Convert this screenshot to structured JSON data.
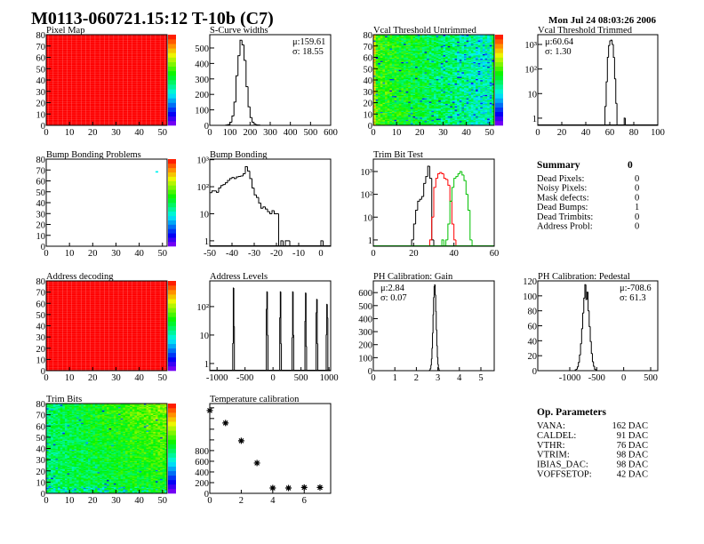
{
  "title": "M0113-060721.15:12 T-10b (C7)",
  "timestamp": "Mon Jul 24 08:03:26 2006",
  "chart_data": [
    {
      "type": "heatmap",
      "title": "Pixel Map",
      "xlim": [
        0,
        52
      ],
      "ylim": [
        0,
        80
      ],
      "xticks": [
        "0",
        "10",
        "20",
        "30",
        "40",
        "50"
      ],
      "yticks": [
        "0",
        "10",
        "20",
        "30",
        "40",
        "50",
        "60",
        "70",
        "80"
      ],
      "zlim": [
        0,
        1
      ],
      "uniform_value": 1
    },
    {
      "type": "bar",
      "subtype": "histogram",
      "title": "S-Curve widths",
      "xlim": [
        0,
        600
      ],
      "ylim": [
        0,
        586
      ],
      "ylog": false,
      "xticks": [
        "0",
        "100",
        "200",
        "300",
        "400",
        "500",
        "600"
      ],
      "yticks": [
        "0",
        "100",
        "200",
        "300",
        "400",
        "500"
      ],
      "stats": {
        "mean": "μ:159.61",
        "sigma": "σ: 18.55",
        "position": "top-right"
      },
      "series": [
        {
          "color": "#000000",
          "bin_width": 10,
          "x": [
            80,
            90,
            100,
            110,
            120,
            130,
            140,
            150,
            160,
            170,
            180,
            190,
            200,
            210,
            220,
            230,
            240
          ],
          "y": [
            2,
            5,
            20,
            60,
            150,
            320,
            450,
            550,
            520,
            420,
            250,
            120,
            50,
            20,
            8,
            3,
            2
          ]
        }
      ]
    },
    {
      "type": "heatmap",
      "title": "Vcal Threshold Untrimmed",
      "xlim": [
        0,
        52
      ],
      "ylim": [
        0,
        80
      ],
      "xticks": [
        "0",
        "10",
        "20",
        "30",
        "40",
        "50"
      ],
      "yticks": [
        "0",
        "10",
        "20",
        "30",
        "40",
        "50",
        "60",
        "70",
        "80"
      ],
      "zlim": [
        85,
        125
      ]
    },
    {
      "type": "bar",
      "subtype": "histogram",
      "title": "Vcal Threshold Trimmed",
      "xlim": [
        0,
        100
      ],
      "ylim": [
        0.51,
        2500
      ],
      "ylog": true,
      "xticks": [
        "0",
        "20",
        "40",
        "60",
        "80",
        "100"
      ],
      "yticks": [
        "1",
        "10",
        "10²",
        "10³"
      ],
      "stats": {
        "mean": "μ:60.64",
        "sigma": "σ: 1.30",
        "position": "top-left"
      },
      "series": [
        {
          "color": "#000000",
          "bin_width": 1,
          "x": [
            56,
            57,
            58,
            59,
            60,
            61,
            62,
            63,
            64,
            65,
            72
          ],
          "y": [
            3,
            30,
            300,
            900,
            1400,
            1500,
            1000,
            300,
            40,
            4,
            1
          ]
        }
      ]
    },
    {
      "type": "heatmap",
      "title": "Bump Bonding Problems",
      "xlim": [
        0,
        52
      ],
      "ylim": [
        0,
        80
      ],
      "xticks": [
        "0",
        "10",
        "20",
        "30",
        "40",
        "50"
      ],
      "yticks": [
        "0",
        "10",
        "20",
        "30",
        "40",
        "50",
        "60",
        "70",
        "80"
      ],
      "zlim": [
        0,
        1
      ],
      "cells": [
        {
          "x": 47,
          "y": 68,
          "z": 0.35
        }
      ]
    },
    {
      "type": "bar",
      "subtype": "histogram",
      "title": "Bump Bonding",
      "xlim": [
        -50,
        4.4
      ],
      "ylim": [
        0.63,
        1050
      ],
      "ylog": true,
      "xticks": [
        "-50",
        "-40",
        "-30",
        "-20",
        "-10",
        "0"
      ],
      "yticks": [
        "1",
        "10",
        "10²",
        "10³"
      ],
      "series": [
        {
          "color": "#000000",
          "bin_width": 1,
          "x": [
            -50,
            -49,
            -48,
            -47,
            -46,
            -45,
            -44,
            -43,
            -42,
            -41,
            -40,
            -39,
            -38,
            -37,
            -36,
            -35,
            -34,
            -33,
            -32,
            -31,
            -30,
            -29,
            -28,
            -27,
            -26,
            -25,
            -24,
            -23,
            -22,
            -21,
            -20,
            -18,
            -16,
            -15,
            0
          ],
          "y": [
            60,
            70,
            70,
            62,
            90,
            110,
            120,
            140,
            170,
            200,
            220,
            200,
            230,
            240,
            250,
            300,
            550,
            380,
            200,
            90,
            50,
            40,
            25,
            16,
            18,
            15,
            12,
            10,
            13,
            10,
            10,
            1,
            1,
            1,
            1
          ]
        }
      ]
    },
    {
      "type": "bar",
      "subtype": "histogram",
      "title": "Trim Bit Test",
      "xlim": [
        0,
        60
      ],
      "ylim": [
        0.53,
        3500
      ],
      "ylog": true,
      "xticks": [
        "0",
        "20",
        "40",
        "60"
      ],
      "yticks": [
        "1",
        "10",
        "10²",
        "10³"
      ],
      "series": [
        {
          "color": "#000000",
          "bin_width": 1,
          "x": [
            19,
            20,
            21,
            22,
            23,
            24,
            25,
            26,
            27,
            28,
            29
          ],
          "y": [
            1,
            5,
            20,
            50,
            60,
            80,
            300,
            600,
            1700,
            500,
            1
          ]
        },
        {
          "color": "#ff0000",
          "bin_width": 1,
          "x": [
            28,
            29,
            30,
            31,
            32,
            33,
            34,
            35,
            36,
            37,
            38,
            39,
            40
          ],
          "y": [
            1,
            10,
            200,
            500,
            800,
            900,
            800,
            500,
            450,
            250,
            50,
            5,
            1
          ]
        },
        {
          "color": "#00c000",
          "bin_width": 1,
          "x": [
            34,
            36,
            37,
            38,
            39,
            40,
            41,
            42,
            43,
            44,
            45,
            46,
            47,
            48
          ],
          "y": [
            1,
            1,
            5,
            50,
            200,
            500,
            600,
            800,
            1000,
            700,
            400,
            100,
            20,
            1
          ]
        }
      ]
    },
    {
      "type": "heatmap",
      "title": "Address decoding",
      "xlim": [
        0,
        52
      ],
      "ylim": [
        0,
        80
      ],
      "xticks": [
        "0",
        "10",
        "20",
        "30",
        "40",
        "50"
      ],
      "yticks": [
        "0",
        "10",
        "20",
        "30",
        "40",
        "50",
        "60",
        "70",
        "80"
      ],
      "zlim": [
        0,
        1
      ],
      "uniform_value": 1
    },
    {
      "type": "bar",
      "subtype": "histogram",
      "title": "Address Levels",
      "xlim": [
        -1130,
        1030
      ],
      "ylim": [
        0.56,
        800
      ],
      "ylog": true,
      "xticks": [
        "-1000",
        "-500",
        "0",
        "500",
        "1000"
      ],
      "xtick_values": [
        -1000,
        -500,
        0,
        500,
        1000
      ],
      "yticks": [
        "1",
        "10",
        "10²"
      ],
      "series": [
        {
          "color": "#000000",
          "bin_width": 10,
          "x": [
            -720,
            -710,
            -700,
            -120,
            -110,
            -100,
            120,
            130,
            140,
            340,
            350,
            360,
            570,
            580,
            590,
            770,
            780,
            790,
            950,
            960,
            970
          ],
          "y": [
            5,
            450,
            20,
            80,
            330,
            10,
            40,
            330,
            5,
            8,
            330,
            10,
            30,
            300,
            4,
            60,
            180,
            5,
            10,
            120,
            40
          ]
        }
      ]
    },
    {
      "type": "bar",
      "subtype": "histogram",
      "title": "PH Calibration: Gain",
      "xlim": [
        0,
        5.62
      ],
      "ylim": [
        0,
        690
      ],
      "ylog": false,
      "xticks": [
        "0",
        "1",
        "2",
        "3",
        "4",
        "5"
      ],
      "yticks": [
        "0",
        "100",
        "200",
        "300",
        "400",
        "500",
        "600"
      ],
      "stats": {
        "mean": "μ:2.84",
        "sigma": "σ: 0.07",
        "position": "top-left"
      },
      "series": [
        {
          "color": "#000000",
          "bin_width": 0.025,
          "x": [
            2.6,
            2.625,
            2.65,
            2.675,
            2.7,
            2.725,
            2.75,
            2.775,
            2.8,
            2.825,
            2.85,
            2.875,
            2.9,
            2.925,
            2.95,
            2.975,
            3.0,
            3.025,
            3.05
          ],
          "y": [
            2,
            6,
            17,
            41,
            89,
            171,
            288,
            429,
            561,
            645,
            660,
            582,
            457,
            315,
            193,
            103,
            49,
            20,
            7
          ]
        }
      ]
    },
    {
      "type": "bar",
      "subtype": "histogram",
      "title": "PH Calibration: Pedestal",
      "xlim": [
        -1593,
        632
      ],
      "ylim": [
        0,
        120
      ],
      "ylog": false,
      "xticks": [
        "-1000",
        "-500",
        "0",
        "500"
      ],
      "xtick_values": [
        -1000,
        -500,
        0,
        500
      ],
      "yticks": [
        "0",
        "20",
        "40",
        "60",
        "80",
        "100",
        "120"
      ],
      "stats": {
        "mean": "μ:-708.6",
        "sigma": "σ: 61.3",
        "position": "top-right"
      },
      "series": [
        {
          "color": "#000000",
          "bin_width": 20,
          "x": [
            -900,
            -880,
            -860,
            -840,
            -820,
            -800,
            -780,
            -760,
            -740,
            -720,
            -700,
            -680,
            -660,
            -640,
            -620,
            -600,
            -580,
            -560,
            -540,
            -520
          ],
          "y": [
            1,
            2,
            5,
            11,
            21,
            36,
            56,
            77,
            97,
            115,
            95,
            105,
            80,
            59,
            39,
            23,
            12,
            6,
            2,
            1
          ]
        }
      ]
    },
    {
      "type": "heatmap",
      "title": "Trim Bits",
      "xlim": [
        0,
        52
      ],
      "ylim": [
        0,
        80
      ],
      "xticks": [
        "0",
        "10",
        "20",
        "30",
        "40",
        "50"
      ],
      "yticks": [
        "0",
        "10",
        "20",
        "30",
        "40",
        "50",
        "60",
        "70",
        "80"
      ],
      "zlim": [
        0,
        16
      ]
    },
    {
      "type": "scatter",
      "title": "Temperature calibration",
      "xlim": [
        0,
        7.68
      ],
      "ylim": [
        0,
        1680
      ],
      "ylog": false,
      "xticks": [
        "0",
        "2",
        "4",
        "6"
      ],
      "yticks": [
        "0",
        "200",
        "400",
        "600",
        "800"
      ],
      "marker": "asterisk",
      "x": [
        0,
        1,
        2,
        3,
        4,
        5,
        6,
        7
      ],
      "y": [
        1550,
        1316,
        983,
        567,
        100,
        100,
        110,
        110
      ]
    }
  ],
  "summary": {
    "title": "Summary",
    "total": "0",
    "rows": [
      {
        "label": "Dead Pixels:",
        "value": "0"
      },
      {
        "label": "Noisy Pixels:",
        "value": "0"
      },
      {
        "label": "Mask defects:",
        "value": "0"
      },
      {
        "label": "Dead Bumps:",
        "value": "1"
      },
      {
        "label": "Dead Trimbits:",
        "value": "0"
      },
      {
        "label": "Address Probl:",
        "value": "0"
      }
    ]
  },
  "op_parameters": {
    "title": "Op. Parameters",
    "rows": [
      {
        "label": "VANA:",
        "value": "162 DAC"
      },
      {
        "label": "CALDEL:",
        "value": "91 DAC"
      },
      {
        "label": "VTHR:",
        "value": "76 DAC"
      },
      {
        "label": "VTRIM:",
        "value": "98 DAC"
      },
      {
        "label": "IBIAS_DAC:",
        "value": "98 DAC"
      },
      {
        "label": "VOFFSETOP:",
        "value": "42 DAC"
      }
    ]
  }
}
